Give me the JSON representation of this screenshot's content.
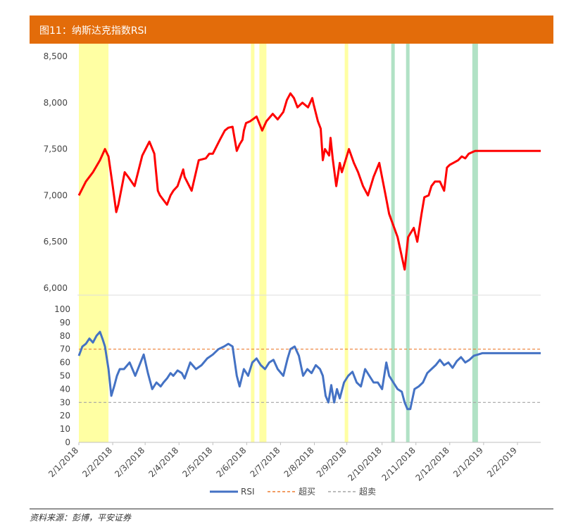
{
  "title": "图11：纳斯达克指数RSI",
  "source": "资料来源：彭博，平安证券",
  "colors": {
    "title_bg": "#E36C0A",
    "price_line": "#FF0000",
    "rsi_line": "#4472C4",
    "overbought_line": "#ED7D31",
    "oversold_line": "#A5A5A5",
    "highlight_overbought": "#FFFF99",
    "highlight_oversold": "#A9DFBF"
  },
  "chart_data": [
    {
      "type": "line",
      "title": "纳斯达克指数",
      "ylim": [
        6000,
        8500
      ],
      "yticks": [
        "8,500",
        "8,000",
        "7,500",
        "7,000",
        "6,500",
        "6,000"
      ],
      "ytick_values": [
        8500,
        8000,
        7500,
        7000,
        6500,
        6000
      ],
      "series": [
        {
          "x": [
            0,
            10,
            20,
            30,
            37,
            42,
            48,
            53,
            56,
            65,
            70,
            79,
            90,
            100,
            107,
            112,
            115,
            120,
            125,
            130,
            134,
            140,
            148,
            150,
            160,
            170,
            180,
            185,
            190,
            200,
            207,
            212,
            218,
            224,
            228,
            232,
            234,
            237,
            243,
            252,
            260,
            266,
            275,
            282,
            290,
            295,
            300,
            305,
            310,
            317,
            325,
            331,
            333,
            339,
            343,
            346,
            349,
            355,
            357,
            360,
            365,
            370,
            373,
            383,
            390,
            396,
            403,
            410,
            418,
            426,
            435,
            440,
            452,
            462,
            467,
            475,
            480,
            486,
            490,
            496,
            500,
            505,
            512,
            518,
            522,
            526,
            531,
            538,
            543,
            548,
            553,
            559,
            562,
            567,
            575,
            585,
            589,
            598,
            605,
            610,
            617,
            625,
            633,
            640,
            645,
            650,
            655
          ],
          "values": [
            7000,
            7150,
            7250,
            7380,
            7500,
            7420,
            7100,
            6820,
            6900,
            7250,
            7200,
            7100,
            7430,
            7580,
            7450,
            7050,
            7000,
            6950,
            6900,
            7000,
            7050,
            7100,
            7280,
            7200,
            7050,
            7380,
            7400,
            7450,
            7450,
            7600,
            7700,
            7730,
            7740,
            7480,
            7550,
            7600,
            7700,
            7780,
            7800,
            7850,
            7700,
            7800,
            7880,
            7820,
            7900,
            8030,
            8100,
            8050,
            7950,
            8000,
            7950,
            8050,
            7980,
            7800,
            7720,
            7380,
            7500,
            7430,
            7620,
            7400,
            7100,
            7350,
            7250,
            7500,
            7350,
            7250,
            7100,
            7000,
            7200,
            7350,
            7000,
            6800,
            6550,
            6200,
            6550,
            6650,
            6500,
            6800,
            6980,
            7000,
            7100,
            7150,
            7150,
            7050,
            7300,
            7330,
            7350,
            7380,
            7420,
            7400,
            7450,
            7470,
            7480,
            7480,
            7480,
            7480,
            7480,
            7480,
            7480,
            7480,
            7480,
            7480,
            7480,
            7480,
            7480,
            7480,
            7480
          ],
          "name": ""
        }
      ]
    },
    {
      "type": "line",
      "title": "RSI",
      "ylim": [
        0,
        100
      ],
      "yticks": [
        "100",
        "90",
        "80",
        "70",
        "60",
        "50",
        "40",
        "30",
        "20",
        "10",
        "0"
      ],
      "ytick_values": [
        100,
        90,
        80,
        70,
        60,
        50,
        40,
        30,
        20,
        10,
        0
      ],
      "overbought": 70,
      "oversold": 30,
      "series": [
        {
          "name": "RSI",
          "x": [
            0,
            5,
            10,
            15,
            20,
            25,
            30,
            34,
            37,
            42,
            46,
            50,
            54,
            58,
            64,
            72,
            80,
            86,
            92,
            98,
            104,
            110,
            116,
            120,
            125,
            130,
            134,
            140,
            146,
            150,
            158,
            166,
            174,
            182,
            190,
            198,
            206,
            212,
            218,
            224,
            228,
            234,
            240,
            246,
            252,
            258,
            264,
            270,
            276,
            282,
            290,
            296,
            300,
            306,
            312,
            318,
            324,
            330,
            336,
            342,
            346,
            350,
            354,
            358,
            362,
            366,
            370,
            376,
            382,
            388,
            394,
            400,
            406,
            412,
            418,
            424,
            430,
            436,
            440,
            446,
            452,
            458,
            462,
            466,
            470,
            476,
            482,
            488,
            494,
            500,
            506,
            512,
            518,
            524,
            530,
            536,
            542,
            548,
            554,
            560,
            566,
            572,
            578,
            584,
            590,
            596,
            602,
            608,
            614,
            620,
            626,
            632,
            638,
            644,
            650,
            655
          ],
          "values": [
            65,
            72,
            74,
            78,
            75,
            80,
            83,
            77,
            72,
            55,
            35,
            42,
            50,
            55,
            55,
            60,
            50,
            58,
            66,
            52,
            40,
            45,
            42,
            45,
            48,
            52,
            50,
            54,
            52,
            48,
            60,
            55,
            58,
            63,
            66,
            70,
            72,
            74,
            72,
            50,
            42,
            55,
            50,
            60,
            63,
            58,
            55,
            60,
            62,
            55,
            50,
            63,
            70,
            72,
            65,
            50,
            55,
            52,
            58,
            55,
            50,
            35,
            30,
            43,
            30,
            40,
            33,
            45,
            50,
            53,
            45,
            42,
            55,
            50,
            45,
            45,
            40,
            60,
            50,
            45,
            40,
            38,
            30,
            25,
            25,
            40,
            42,
            45,
            52,
            55,
            58,
            62,
            58,
            60,
            56,
            61,
            64,
            60,
            62,
            65,
            66,
            67,
            67,
            67,
            67,
            67,
            67,
            67,
            67,
            67,
            67,
            67,
            67,
            67,
            67,
            67
          ]
        },
        {
          "name": "超买",
          "values": [
            70
          ]
        },
        {
          "name": "超卖",
          "values": [
            30
          ]
        }
      ]
    }
  ],
  "x_axis": {
    "ticks": [
      "2/1/2018",
      "2/2/2018",
      "2/3/2018",
      "2/4/2018",
      "2/5/2018",
      "2/6/2018",
      "2/7/2018",
      "2/8/2018",
      "2/9/2018",
      "2/10/2018",
      "2/11/2018",
      "2/12/2018",
      "2/1/2019",
      "2/2/2019"
    ],
    "tick_x": [
      0,
      48,
      94,
      142,
      190,
      238,
      286,
      334,
      380,
      430,
      478,
      526,
      574,
      622
    ],
    "x_max": 655
  },
  "highlights": [
    {
      "type": "overbought",
      "x_from": 0,
      "x_to": 42
    },
    {
      "type": "overbought",
      "x_from": 244,
      "x_to": 249
    },
    {
      "type": "overbought",
      "x_from": 256,
      "x_to": 266
    },
    {
      "type": "overbought",
      "x_from": 377,
      "x_to": 382
    },
    {
      "type": "oversold",
      "x_from": 443,
      "x_to": 448
    },
    {
      "type": "oversold",
      "x_from": 464,
      "x_to": 469
    },
    {
      "type": "oversold",
      "x_from": 558,
      "x_to": 566
    }
  ],
  "legend": [
    "RSI",
    "超买",
    "超卖"
  ]
}
